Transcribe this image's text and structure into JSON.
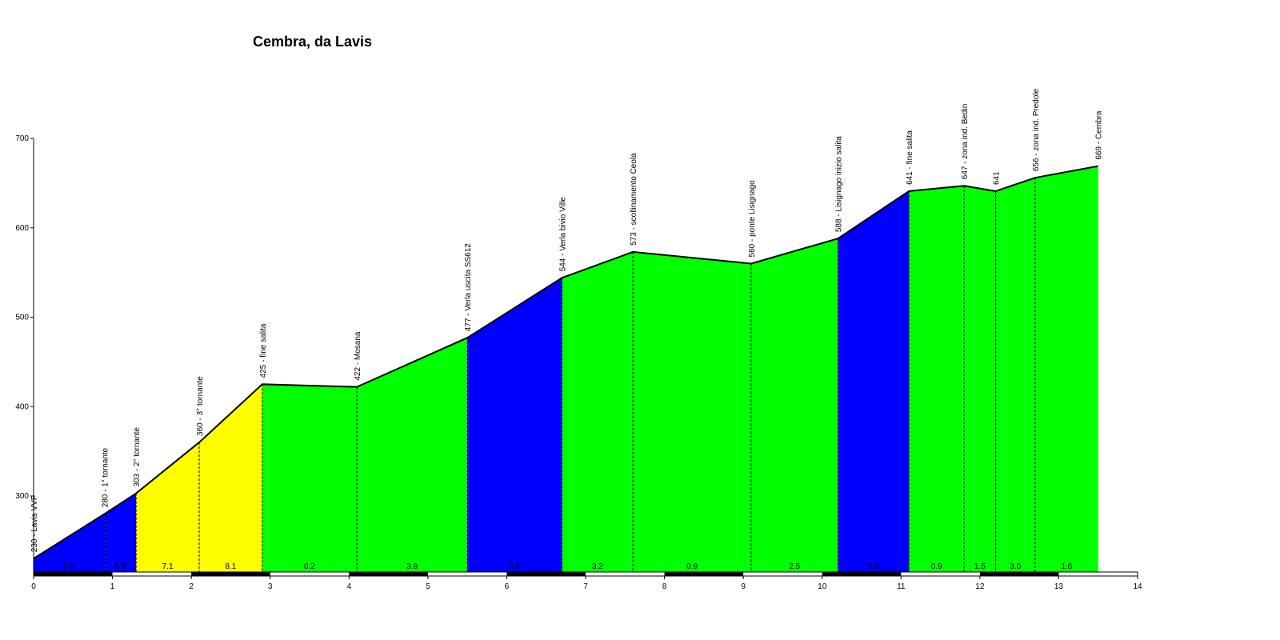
{
  "chart_data": {
    "type": "area",
    "title": "Cembra, da Lavis",
    "xlabel": "",
    "ylabel": "",
    "xlim": [
      0,
      14
    ],
    "ylim": [
      215,
      700
    ],
    "x_ticks": [
      0,
      1,
      2,
      3,
      4,
      5,
      6,
      7,
      8,
      9,
      10,
      11,
      12,
      13,
      14
    ],
    "y_ticks": [
      300,
      400,
      500,
      600,
      700
    ],
    "colors": {
      "blue": "#0000ff",
      "yellow": "#ffff00",
      "green": "#00ff00"
    },
    "points": [
      {
        "x": 0.0,
        "y": 230,
        "label": "230 - Lavis VVF"
      },
      {
        "x": 0.9,
        "y": 280,
        "label": "280 - 1° tornante"
      },
      {
        "x": 1.3,
        "y": 303,
        "label": "303 - 2° tornante"
      },
      {
        "x": 2.1,
        "y": 360,
        "label": "360 - 3° tornante"
      },
      {
        "x": 2.9,
        "y": 425,
        "label": "425 - fine salita"
      },
      {
        "x": 4.1,
        "y": 422,
        "label": "422 - Mosana"
      },
      {
        "x": 5.5,
        "y": 477,
        "label": "477 - Verla uscita SS612"
      },
      {
        "x": 6.7,
        "y": 544,
        "label": "544 - Verla bivio Ville"
      },
      {
        "x": 7.6,
        "y": 573,
        "label": "573 - scollinamento Ceola"
      },
      {
        "x": 9.1,
        "y": 560,
        "label": "560 - ponte Lisignago"
      },
      {
        "x": 10.2,
        "y": 588,
        "label": "588 - Lisignago inizio salita"
      },
      {
        "x": 11.1,
        "y": 641,
        "label": "641 - fine salita"
      },
      {
        "x": 11.8,
        "y": 647,
        "label": "647 - zona ind. Bedin"
      },
      {
        "x": 12.2,
        "y": 641,
        "label": "641"
      },
      {
        "x": 12.7,
        "y": 656,
        "label": "656 - zona ind. Predole"
      },
      {
        "x": 13.5,
        "y": 669,
        "label": "669 - Cembra"
      }
    ],
    "segments": [
      {
        "from": 0.0,
        "to": 0.9,
        "gradient": "5.6",
        "color": "blue"
      },
      {
        "from": 0.9,
        "to": 1.3,
        "gradient": "5.8",
        "color": "blue"
      },
      {
        "from": 1.3,
        "to": 2.1,
        "gradient": "7.1",
        "color": "yellow"
      },
      {
        "from": 2.1,
        "to": 2.9,
        "gradient": "8.1",
        "color": "yellow"
      },
      {
        "from": 2.9,
        "to": 4.1,
        "gradient": "0.2",
        "color": "green"
      },
      {
        "from": 4.1,
        "to": 5.5,
        "gradient": "3.9",
        "color": "green"
      },
      {
        "from": 5.5,
        "to": 6.7,
        "gradient": "5.6",
        "color": "blue"
      },
      {
        "from": 6.7,
        "to": 7.6,
        "gradient": "3.2",
        "color": "green"
      },
      {
        "from": 7.6,
        "to": 9.1,
        "gradient": "0.9",
        "color": "green"
      },
      {
        "from": 9.1,
        "to": 10.2,
        "gradient": "2.5",
        "color": "green"
      },
      {
        "from": 10.2,
        "to": 11.1,
        "gradient": "5.9",
        "color": "blue"
      },
      {
        "from": 11.1,
        "to": 11.8,
        "gradient": "0.9",
        "color": "green"
      },
      {
        "from": 11.8,
        "to": 12.2,
        "gradient": "1.5",
        "color": "green"
      },
      {
        "from": 12.2,
        "to": 12.7,
        "gradient": "3.0",
        "color": "green"
      },
      {
        "from": 12.7,
        "to": 13.5,
        "gradient": "1.6",
        "color": "green"
      }
    ]
  }
}
